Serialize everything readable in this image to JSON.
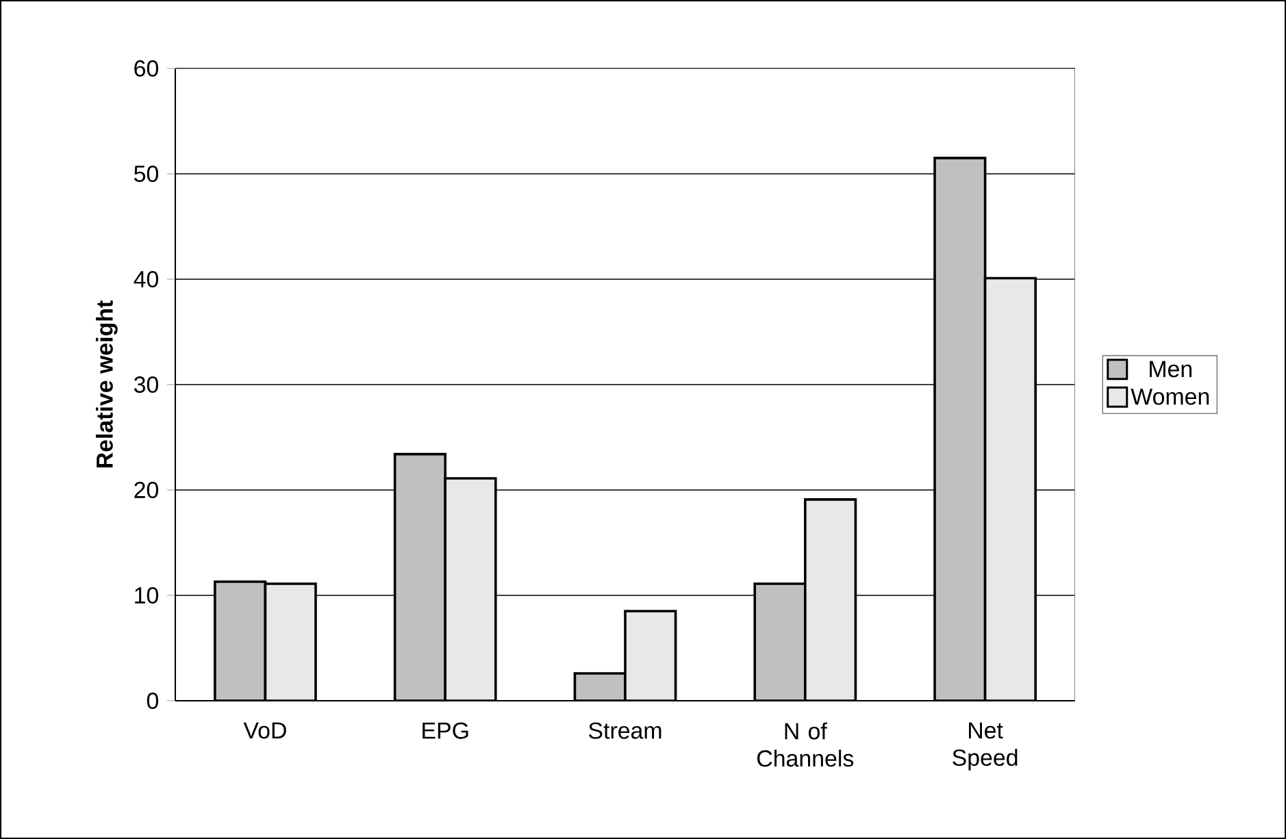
{
  "chart_data": {
    "type": "bar",
    "ylabel": "Relative weight",
    "categories": [
      "VoD",
      "EPG",
      "Stream",
      "N of Channels",
      "Net Speed"
    ],
    "series": [
      {
        "name": "Men",
        "color": "#c0c0c0",
        "values": [
          11.3,
          23.4,
          2.6,
          11.1,
          51.5
        ]
      },
      {
        "name": "Women",
        "color": "#e8e8e8",
        "values": [
          11.1,
          21.1,
          8.5,
          19.1,
          40.1
        ]
      }
    ],
    "ylim": [
      0,
      60
    ],
    "yticks": [
      0,
      10,
      20,
      30,
      40,
      50,
      60
    ],
    "grid": "y",
    "legend": "right"
  }
}
